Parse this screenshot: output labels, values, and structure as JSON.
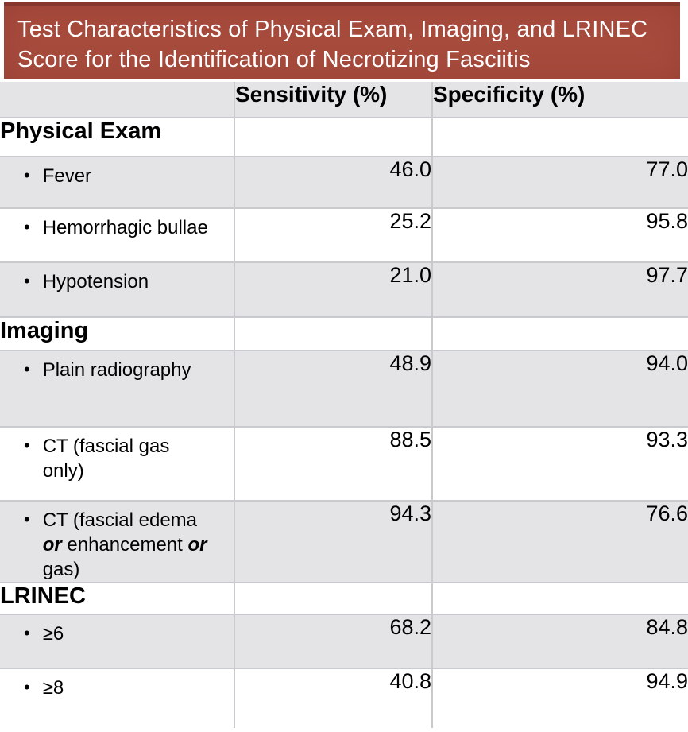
{
  "banner": {
    "title": "Test Characteristics of Physical Exam, Imaging, and LRINEC Score for the Identification of Necrotizing Fasciitis"
  },
  "table": {
    "columns": [
      "",
      "Sensitivity (%)",
      "Specificity (%)"
    ],
    "rows": [
      {
        "type": "section",
        "label": "Physical Exam",
        "sensitivity": "",
        "specificity": ""
      },
      {
        "type": "item",
        "label": "Fever",
        "sensitivity": "46.0",
        "specificity": "77.0"
      },
      {
        "type": "item",
        "label": "Hemorrhagic bullae",
        "sensitivity": "25.2",
        "specificity": "95.8"
      },
      {
        "type": "item",
        "label": "Hypotension",
        "sensitivity": "21.0",
        "specificity": "97.7"
      },
      {
        "type": "section",
        "label": "Imaging",
        "sensitivity": "",
        "specificity": ""
      },
      {
        "type": "item",
        "label": "Plain radiography",
        "sensitivity": "48.9",
        "specificity": "94.0"
      },
      {
        "type": "item",
        "label": "CT (fascial gas\nonly)",
        "sensitivity": "88.5",
        "specificity": "93.3"
      },
      {
        "type": "item",
        "label": [
          "CT (fascial edema\n",
          {
            "t": "or",
            "em": true
          },
          " enhancement ",
          {
            "t": "or",
            "em": true
          },
          "\ngas)"
        ],
        "sensitivity": "94.3",
        "specificity": "76.6"
      },
      {
        "type": "section",
        "label": "LRINEC",
        "sensitivity": "",
        "specificity": ""
      },
      {
        "type": "item",
        "label": "≥6",
        "sensitivity": "68.2",
        "specificity": "84.8"
      },
      {
        "type": "item",
        "label": "≥8",
        "sensitivity": "40.8",
        "specificity": "94.9"
      }
    ]
  },
  "colors": {
    "banner_bg": "#A74B3D",
    "banner_top_strip": "#86362A",
    "row_gray": "#E4E4E7",
    "row_white": "#FFFFFF",
    "border": "#C9CACE",
    "title_text": "#FFFFFF",
    "body_text": "#000000"
  }
}
